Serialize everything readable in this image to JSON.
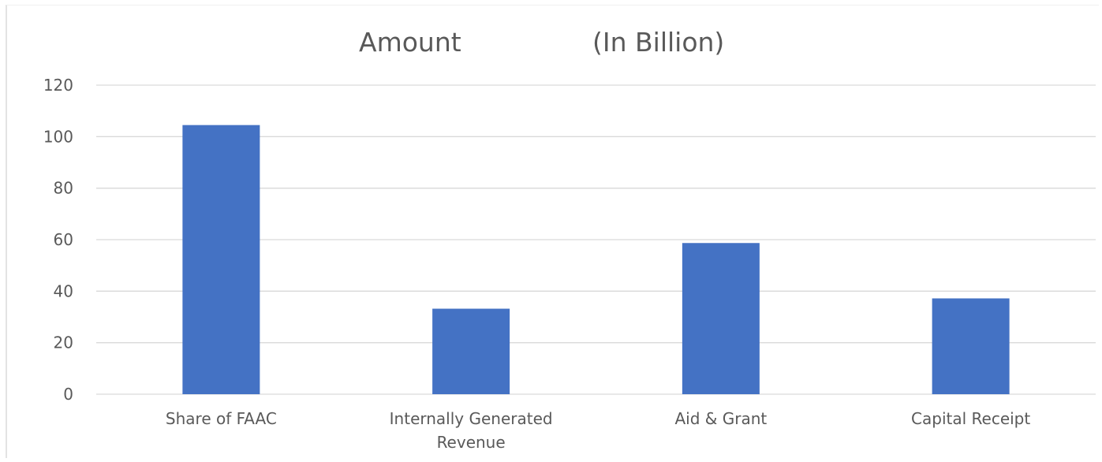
{
  "chart_data": {
    "type": "bar",
    "title_left": "Amount",
    "title_right": "(In Billion)",
    "categories": [
      [
        "Share of FAAC"
      ],
      [
        "Internally Generated",
        "Revenue"
      ],
      [
        "Aid & Grant"
      ],
      [
        "Capital Receipt"
      ]
    ],
    "values": [
      104.5,
      33.2,
      58.7,
      37.2
    ],
    "ylim": [
      0,
      120
    ],
    "yticks": [
      "0",
      "20",
      "40",
      "60",
      "80",
      "100",
      "120"
    ],
    "grid": true,
    "legend": "none",
    "bar_color": "#4472c4"
  }
}
